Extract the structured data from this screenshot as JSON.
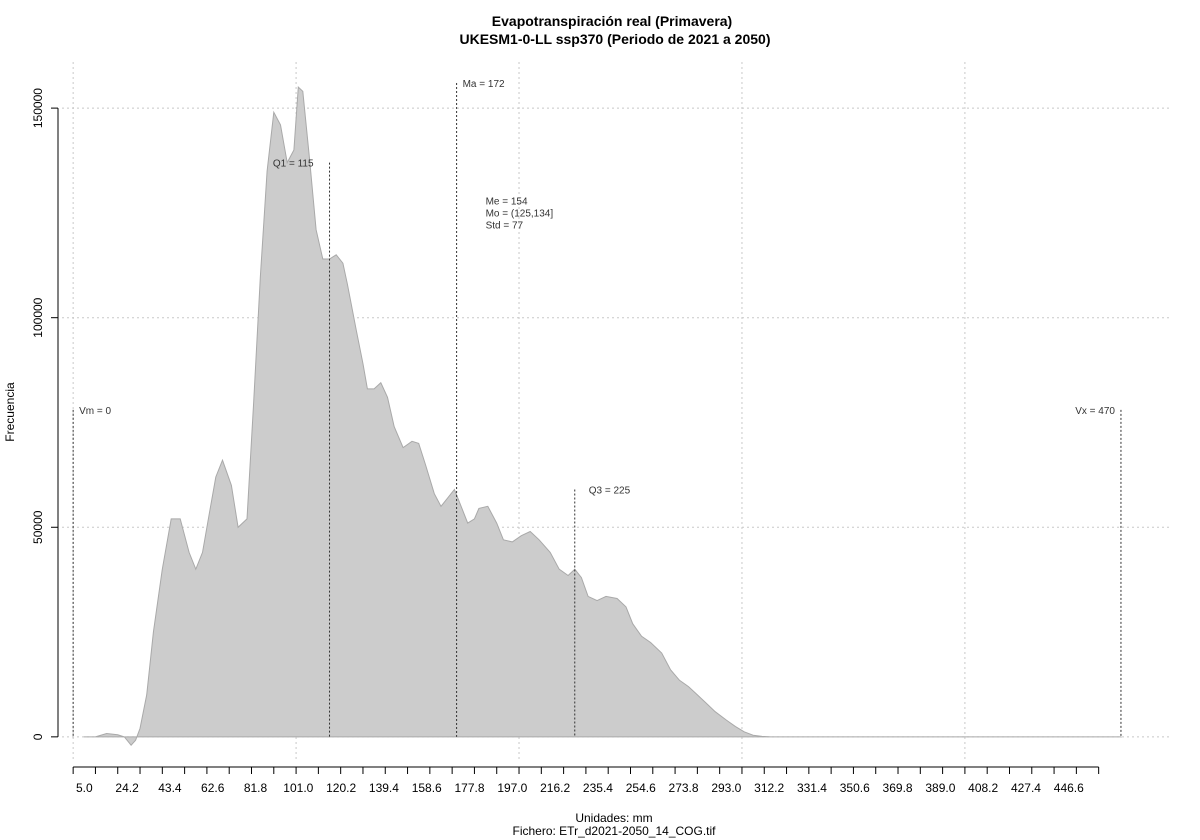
{
  "chart_data": {
    "type": "area",
    "title": "Evapotranspiración real (Primavera)",
    "subtitle": "UKESM1-0-LL ssp370 (Periodo de 2021 a 2050)",
    "xlabel": "Unidades: mm",
    "xlabel2": "Fichero: ETr_d2021-2050_14_COG.tif",
    "ylabel": "Frecuencia",
    "xlim": [
      -5,
      492
    ],
    "ylim": [
      -6000,
      161000
    ],
    "grid": true,
    "x_ticks": [
      5.0,
      24.2,
      43.4,
      62.6,
      81.8,
      101.0,
      120.2,
      139.4,
      158.6,
      177.8,
      197.0,
      216.2,
      235.4,
      254.6,
      273.8,
      293.0,
      312.2,
      331.4,
      350.6,
      369.8,
      389.0,
      408.2,
      427.4,
      446.6
    ],
    "x_tick_labels": [
      "5.0",
      "24.2",
      "43.4",
      "62.6",
      "81.8",
      "101.0",
      "120.2",
      "139.4",
      "158.6",
      "177.8",
      "197.0",
      "216.2",
      "235.4",
      "254.6",
      "273.8",
      "293.0",
      "312.2",
      "331.4",
      "350.6",
      "369.8",
      "389.0",
      "408.2",
      "427.4",
      "446.6"
    ],
    "x_minor_ticks": [
      0,
      10,
      20,
      30,
      40,
      50,
      60,
      70,
      80,
      90,
      100,
      110,
      120,
      130,
      140,
      150,
      160,
      170,
      180,
      190,
      200,
      210,
      220,
      230,
      240,
      250,
      260,
      270,
      280,
      290,
      300,
      310,
      320,
      330,
      340,
      350,
      360,
      370,
      380,
      390,
      400,
      410,
      420,
      430,
      440,
      450,
      460
    ],
    "y_ticks": [
      0,
      50000,
      100000,
      150000
    ],
    "y_tick_labels": [
      "0",
      "50000",
      "100000",
      "150000"
    ],
    "x_grid": [
      0,
      100,
      200,
      300,
      400
    ],
    "y_grid": [
      0,
      50000,
      100000,
      150000
    ],
    "series": [
      {
        "x": [
          5,
          10,
          15,
          20,
          23,
          26,
          28,
          30,
          33,
          36,
          40,
          44,
          48,
          52,
          55,
          58,
          61,
          64,
          67,
          71,
          74,
          78,
          81,
          84,
          87,
          90,
          93,
          96,
          99,
          101,
          103,
          106,
          109,
          112,
          115,
          118,
          121,
          123,
          127,
          130,
          132,
          135,
          138,
          141,
          144,
          148,
          152,
          155,
          158,
          162,
          165,
          168,
          171,
          174,
          177,
          180,
          182,
          186,
          190,
          193,
          197,
          201,
          205,
          209,
          214,
          218,
          222,
          225,
          228,
          231,
          235,
          239,
          244,
          248,
          251,
          255,
          259,
          264,
          268,
          272,
          276,
          280,
          284,
          288,
          293,
          297,
          301,
          305,
          309,
          313,
          318,
          322,
          326,
          330,
          335,
          339,
          344,
          348,
          352,
          356,
          360,
          365,
          370,
          375,
          380,
          385,
          390,
          394,
          400,
          410,
          420,
          440,
          460,
          470
        ],
        "values": [
          0,
          0,
          800,
          500,
          0,
          -2000,
          -800,
          2000,
          10000,
          25000,
          40000,
          52000,
          52000,
          44000,
          40000,
          44000,
          53000,
          62000,
          66000,
          60000,
          50000,
          52000,
          80000,
          110000,
          135000,
          149000,
          146000,
          137000,
          140000,
          155000,
          154000,
          138000,
          121000,
          114000,
          114000,
          115000,
          113000,
          108000,
          97000,
          89000,
          83000,
          83000,
          84500,
          81000,
          74000,
          69000,
          70500,
          70000,
          65000,
          58000,
          55000,
          57000,
          59000,
          55000,
          51000,
          52000,
          54500,
          55000,
          51000,
          47000,
          46500,
          48000,
          49000,
          47000,
          44000,
          40000,
          38500,
          40000,
          38000,
          33500,
          32500,
          33500,
          33000,
          31000,
          27000,
          24000,
          22500,
          20000,
          16000,
          13500,
          12000,
          10000,
          8000,
          6000,
          4000,
          2500,
          1200,
          400,
          100,
          0,
          0,
          0,
          0,
          0,
          0,
          0,
          0,
          0,
          0,
          0,
          0,
          0,
          0,
          0,
          0,
          0,
          0,
          0,
          0,
          0,
          0,
          0,
          0,
          0
        ]
      }
    ],
    "annotations": {
      "vm": {
        "label": "Vm = 0",
        "x": 0,
        "y": 78000
      },
      "vx": {
        "label": "Vx = 470",
        "x": 470,
        "y": 78000
      },
      "q1": {
        "label": "Q1 = 115",
        "x": 115,
        "y": 137000
      },
      "ma": {
        "label": "Ma = 172",
        "x": 172,
        "y": 156000
      },
      "q3": {
        "label": "Q3 = 225",
        "x": 225,
        "y": 59000
      },
      "stats": {
        "lines": [
          "Me = 154",
          "Mo = (125,134]",
          "Std = 77"
        ],
        "x": 185,
        "y": 128000
      }
    }
  }
}
